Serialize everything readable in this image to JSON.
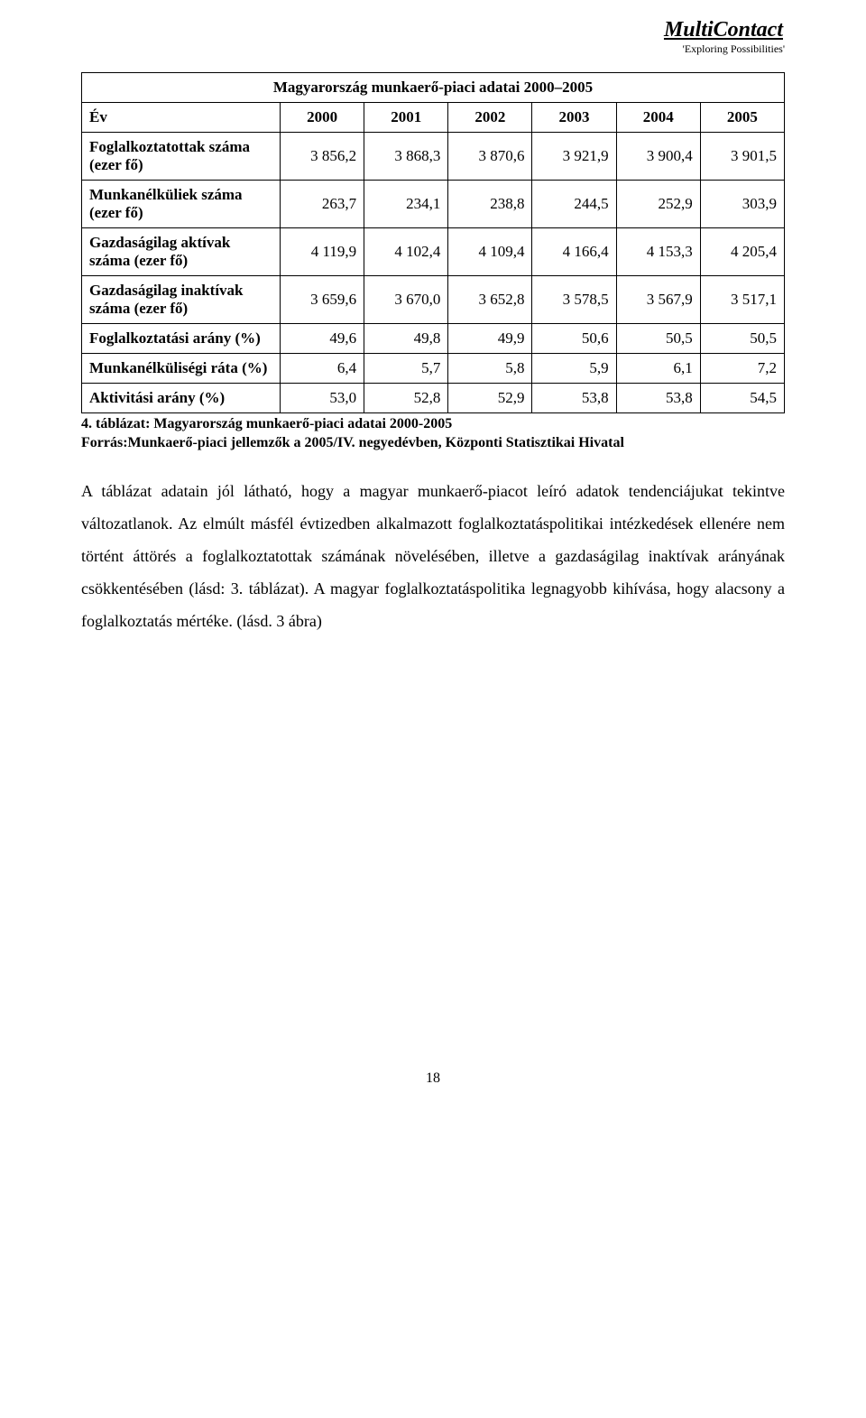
{
  "brand": {
    "title": "MultiContact",
    "tagline": "'Exploring Possibilities'"
  },
  "table": {
    "type": "table",
    "caption": "Magyarország munkaerő-piaci adatai 2000–2005",
    "header_first": "Év",
    "years": [
      "2000",
      "2001",
      "2002",
      "2003",
      "2004",
      "2005"
    ],
    "rows": [
      {
        "label": "Foglalkoztatottak száma (ezer fő)",
        "vals": [
          "3 856,2",
          "3 868,3",
          "3 870,6",
          "3 921,9",
          "3 900,4",
          "3 901,5"
        ]
      },
      {
        "label": "Munkanélküliek száma (ezer fő)",
        "vals": [
          "263,7",
          "234,1",
          "238,8",
          "244,5",
          "252,9",
          "303,9"
        ]
      },
      {
        "label": "Gazdaságilag aktívak száma (ezer fő)",
        "vals": [
          "4 119,9",
          "4 102,4",
          "4 109,4",
          "4 166,4",
          "4 153,3",
          "4 205,4"
        ]
      },
      {
        "label": "Gazdaságilag inaktívak száma (ezer fő)",
        "vals": [
          "3 659,6",
          "3 670,0",
          "3 652,8",
          "3 578,5",
          "3 567,9",
          "3 517,1"
        ]
      },
      {
        "label": "Foglalkoztatási arány (%)",
        "vals": [
          "49,6",
          "49,8",
          "49,9",
          "50,6",
          "50,5",
          "50,5"
        ]
      },
      {
        "label": "Munkanélküliségi ráta (%)",
        "vals": [
          "6,4",
          "5,7",
          "5,8",
          "5,9",
          "6,1",
          "7,2"
        ]
      },
      {
        "label": "Aktivitási arány (%)",
        "vals": [
          "53,0",
          "52,8",
          "52,9",
          "53,8",
          "53,8",
          "54,5"
        ]
      }
    ],
    "footnote_line1": "4. táblázat: Magyarország munkaerő-piaci adatai 2000-2005",
    "footnote_line2": "Forrás:Munkaerő-piaci jellemzők a 2005/IV. negyedévben, Központi Statisztikai Hivatal"
  },
  "paragraph": "A táblázat adatain jól látható, hogy a magyar munkaerő-piacot leíró adatok tendenciájukat tekintve változatlanok. Az elmúlt másfél évtizedben alkalmazott foglalkoztatáspolitikai intézkedések ellenére nem történt áttörés a foglalkoztatottak számának növelésében, illetve a gazdaságilag inaktívak arányának csökkentésében (lásd: 3. táblázat). A magyar foglalkoztatáspolitika legnagyobb kihívása, hogy alacsony a foglalkoztatás mértéke. (lásd. 3 ábra)",
  "page_number": "18"
}
